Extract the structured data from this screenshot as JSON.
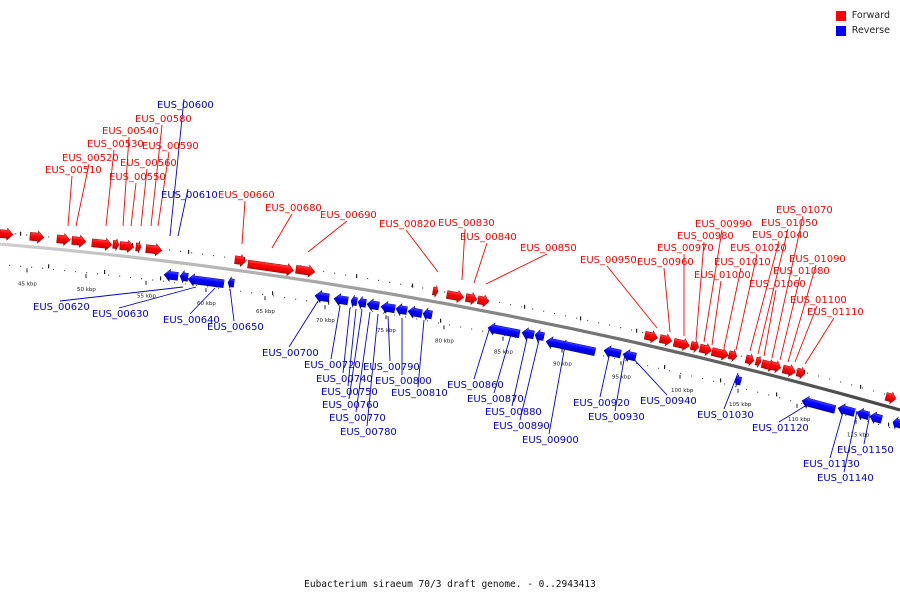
{
  "caption": "Eubacterium siraeum 70/3 draft genome. - 0..2943413",
  "legend": [
    {
      "label": "Forward",
      "color": "#ff0000"
    },
    {
      "label": "Reverse",
      "color": "#0000ff"
    }
  ],
  "scale_ticks": [
    "45 kbp",
    "50 kbp",
    "55 kbp",
    "60 kbp",
    "65 kbp",
    "70 kbp",
    "75 kbp",
    "80 kbp",
    "85 kbp",
    "90 kbp",
    "95 kbp",
    "100 kbp",
    "105 kbp",
    "110 kbp",
    "115 kbp"
  ],
  "genes": [
    {
      "id": "EUS_00510",
      "strand": "forward"
    },
    {
      "id": "EUS_00520",
      "strand": "forward"
    },
    {
      "id": "EUS_00530",
      "strand": "forward"
    },
    {
      "id": "EUS_00540",
      "strand": "forward"
    },
    {
      "id": "EUS_00550",
      "strand": "forward"
    },
    {
      "id": "EUS_00560",
      "strand": "forward"
    },
    {
      "id": "EUS_00580",
      "strand": "forward"
    },
    {
      "id": "EUS_00590",
      "strand": "forward"
    },
    {
      "id": "EUS_00600",
      "strand": "reverse"
    },
    {
      "id": "EUS_00610",
      "strand": "reverse"
    },
    {
      "id": "EUS_00620",
      "strand": "reverse"
    },
    {
      "id": "EUS_00630",
      "strand": "reverse"
    },
    {
      "id": "EUS_00640",
      "strand": "reverse"
    },
    {
      "id": "EUS_00650",
      "strand": "reverse"
    },
    {
      "id": "EUS_00660",
      "strand": "forward"
    },
    {
      "id": "EUS_00680",
      "strand": "forward"
    },
    {
      "id": "EUS_00690",
      "strand": "forward"
    },
    {
      "id": "EUS_00700",
      "strand": "reverse"
    },
    {
      "id": "EUS_00720",
      "strand": "reverse"
    },
    {
      "id": "EUS_00740",
      "strand": "reverse"
    },
    {
      "id": "EUS_00750",
      "strand": "reverse"
    },
    {
      "id": "EUS_00760",
      "strand": "reverse"
    },
    {
      "id": "EUS_00770",
      "strand": "reverse"
    },
    {
      "id": "EUS_00780",
      "strand": "reverse"
    },
    {
      "id": "EUS_00790",
      "strand": "reverse"
    },
    {
      "id": "EUS_00800",
      "strand": "reverse"
    },
    {
      "id": "EUS_00810",
      "strand": "reverse"
    },
    {
      "id": "EUS_00820",
      "strand": "forward"
    },
    {
      "id": "EUS_00830",
      "strand": "forward"
    },
    {
      "id": "EUS_00840",
      "strand": "forward"
    },
    {
      "id": "EUS_00850",
      "strand": "forward"
    },
    {
      "id": "EUS_00860",
      "strand": "reverse"
    },
    {
      "id": "EUS_00870",
      "strand": "reverse"
    },
    {
      "id": "EUS_00880",
      "strand": "reverse"
    },
    {
      "id": "EUS_00890",
      "strand": "reverse"
    },
    {
      "id": "EUS_00900",
      "strand": "reverse"
    },
    {
      "id": "EUS_00920",
      "strand": "reverse"
    },
    {
      "id": "EUS_00930",
      "strand": "reverse"
    },
    {
      "id": "EUS_00940",
      "strand": "reverse"
    },
    {
      "id": "EUS_00950",
      "strand": "forward"
    },
    {
      "id": "EUS_00960",
      "strand": "forward"
    },
    {
      "id": "EUS_00970",
      "strand": "forward"
    },
    {
      "id": "EUS_00980",
      "strand": "forward"
    },
    {
      "id": "EUS_00990",
      "strand": "forward"
    },
    {
      "id": "EUS_01000",
      "strand": "forward"
    },
    {
      "id": "EUS_01010",
      "strand": "forward"
    },
    {
      "id": "EUS_01020",
      "strand": "forward"
    },
    {
      "id": "EUS_01030",
      "strand": "reverse"
    },
    {
      "id": "EUS_01040",
      "strand": "forward"
    },
    {
      "id": "EUS_01050",
      "strand": "forward"
    },
    {
      "id": "EUS_01060",
      "strand": "forward"
    },
    {
      "id": "EUS_01070",
      "strand": "forward"
    },
    {
      "id": "EUS_01080",
      "strand": "forward"
    },
    {
      "id": "EUS_01090",
      "strand": "forward"
    },
    {
      "id": "EUS_01100",
      "strand": "forward"
    },
    {
      "id": "EUS_01110",
      "strand": "forward"
    },
    {
      "id": "EUS_01120",
      "strand": "reverse"
    },
    {
      "id": "EUS_01130",
      "strand": "reverse"
    },
    {
      "id": "EUS_01140",
      "strand": "reverse"
    },
    {
      "id": "EUS_01150",
      "strand": "reverse"
    }
  ]
}
